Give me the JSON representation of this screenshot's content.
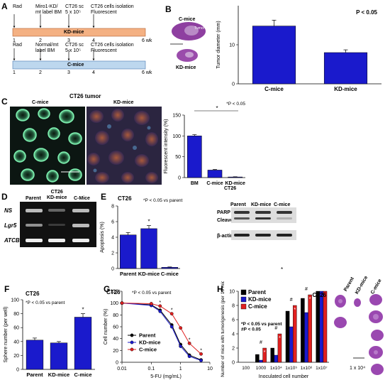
{
  "panelA": {
    "label": "A",
    "kd": {
      "rad": "Rad",
      "label": "Miro1-KD/\nmt label BM",
      "ct26": "CT26 sc\n5 x 10⁵",
      "iso": "CT26 cells isolation\nFluorescent",
      "bar": "KD-mice",
      "weeks": [
        "1",
        "2",
        "3",
        "4",
        "6 wk"
      ]
    },
    "c": {
      "rad": "Rad",
      "label": "Normal/mt\nlabel BM",
      "ct26": "CT26 sc\n5 x 10⁵",
      "iso": "CT26 cells isolation\nFluorescent",
      "bar": "C-mice",
      "weeks": [
        "1",
        "2",
        "3",
        "4",
        "6 wk"
      ]
    },
    "colors": {
      "kd": "#f4b183",
      "c": "#bdd7ee"
    }
  },
  "panelB": {
    "label": "B",
    "cmice": "C-mice",
    "kdmice": "KD-mice",
    "tumor": "Tumor"
  },
  "panelC": {
    "label": "C",
    "title": "CT26 tumor",
    "cmice": "C-mice",
    "kdmice": "KD-mice",
    "group_label": "CT26"
  },
  "panelD": {
    "label": "D",
    "cols": [
      "Parent",
      "CT26\nKD-mice",
      "C-Mice"
    ],
    "rows": [
      "NS",
      "Lgr5",
      "ATCB"
    ]
  },
  "panelE": {
    "label": "E",
    "blot_cols": [
      "Parent",
      "KD-mice",
      "C-mice"
    ],
    "blot_rows": [
      "PARP",
      "Cleaved PARP",
      "β-actin"
    ]
  },
  "panelH": {
    "label": "H",
    "image_labels": [
      "Parent",
      "KD-mice",
      "C-mice"
    ],
    "scale": "1 x 10⁴"
  },
  "panelF": {
    "label": "F"
  },
  "panelG": {
    "label": "G"
  },
  "stray_mark": "*",
  "chart_data": [
    {
      "id": "B",
      "type": "bar",
      "categories": [
        "C-mice",
        "KD-mice"
      ],
      "values": [
        14.8,
        8.0
      ],
      "errors": [
        1.5,
        0.7
      ],
      "ylabel": "Tumor diameter (mm)",
      "ylim": [
        0,
        20
      ],
      "yticks": [
        0,
        10
      ],
      "annotation": "P < 0.05",
      "color": "#1a1acc"
    },
    {
      "id": "C",
      "type": "bar",
      "categories": [
        "BM",
        "C-mice",
        "KD-mice"
      ],
      "values": [
        100,
        18,
        1.5
      ],
      "errors": [
        3,
        1.5,
        0.5
      ],
      "ylabel": "Fluorescent intensity (%)",
      "ylim": [
        0,
        150
      ],
      "yticks": [
        0,
        50,
        100,
        150
      ],
      "annotation": "*P < 0.05",
      "sig_mark": "*",
      "color": "#1a1acc"
    },
    {
      "id": "E",
      "type": "bar",
      "title": "CT26",
      "categories": [
        "Parent",
        "KD-mice",
        "C-mice"
      ],
      "values": [
        4.3,
        5.1,
        0.15
      ],
      "errors": [
        0.3,
        0.4,
        0.05
      ],
      "ylabel": "Apoptosis (%)",
      "ylim": [
        0,
        8
      ],
      "yticks": [
        0,
        2,
        4,
        6,
        8
      ],
      "annotation": "*P < 0.05 vs parent",
      "sig_mark": "*",
      "color": "#1a1acc"
    },
    {
      "id": "F",
      "type": "bar",
      "title": "CT26",
      "categories": [
        "Parent",
        "KD-mice",
        "C-mice"
      ],
      "values": [
        42,
        38,
        75
      ],
      "errors": [
        3,
        2,
        5
      ],
      "ylabel": "Sphere number (per well)",
      "ylim": [
        0,
        100
      ],
      "yticks": [
        0,
        20,
        40,
        60,
        80,
        100
      ],
      "annotation": "*P < 0.05 vs parent",
      "sig_mark": "*",
      "color": "#1a1acc"
    },
    {
      "id": "G",
      "type": "line",
      "title": "CT26",
      "xlabel": "5-FU (mg/mL)",
      "ylabel": "Cell number (%)",
      "x": [
        0.01,
        0.1,
        0.2,
        0.5,
        1,
        2,
        5
      ],
      "xticks": [
        "0.01",
        "0.1",
        "1",
        "10"
      ],
      "xlim": [
        0.01,
        10
      ],
      "ylim": [
        0,
        120
      ],
      "yticks": [
        0,
        20,
        40,
        60,
        80,
        100,
        120
      ],
      "annotation": "*P < 0.05 vs parent",
      "sig_mark": "*",
      "series": [
        {
          "name": "Parent",
          "values": [
            100,
            97,
            88,
            63,
            30,
            12,
            4
          ],
          "color": "#000000"
        },
        {
          "name": "KD-mice",
          "values": [
            100,
            96,
            86,
            60,
            27,
            10,
            3
          ],
          "color": "#1a1acc"
        },
        {
          "name": "C-mice",
          "values": [
            100,
            99,
            95,
            82,
            58,
            32,
            14
          ],
          "color": "#e02020"
        }
      ]
    },
    {
      "id": "H",
      "type": "bar",
      "categories": [
        "100",
        "1000",
        "1x10⁴",
        "1x10⁵",
        "1x10⁶",
        "1x10⁷"
      ],
      "ylabel": "Number of mice with tumorigenesis (per 10 mice)",
      "xlabel": "Inoculated cell number",
      "title": "CT26",
      "ylim": [
        0,
        10
      ],
      "yticks": [
        0,
        2,
        4,
        6,
        8,
        10
      ],
      "annotation": "*P < 0.05 vs parent\n#P < 0.05",
      "sig_marks": [
        "*",
        "#"
      ],
      "series": [
        {
          "name": "Parent",
          "values": [
            0,
            1.1,
            2.0,
            7.2,
            9.0,
            10
          ],
          "color": "#000000"
        },
        {
          "name": "KD-mice",
          "values": [
            0,
            0.3,
            1.0,
            5.0,
            7.0,
            10
          ],
          "color": "#1a1acc"
        },
        {
          "name": "C-mice",
          "values": [
            0,
            2.0,
            4.0,
            8.0,
            9.5,
            10
          ],
          "color": "#e02020"
        }
      ]
    }
  ]
}
